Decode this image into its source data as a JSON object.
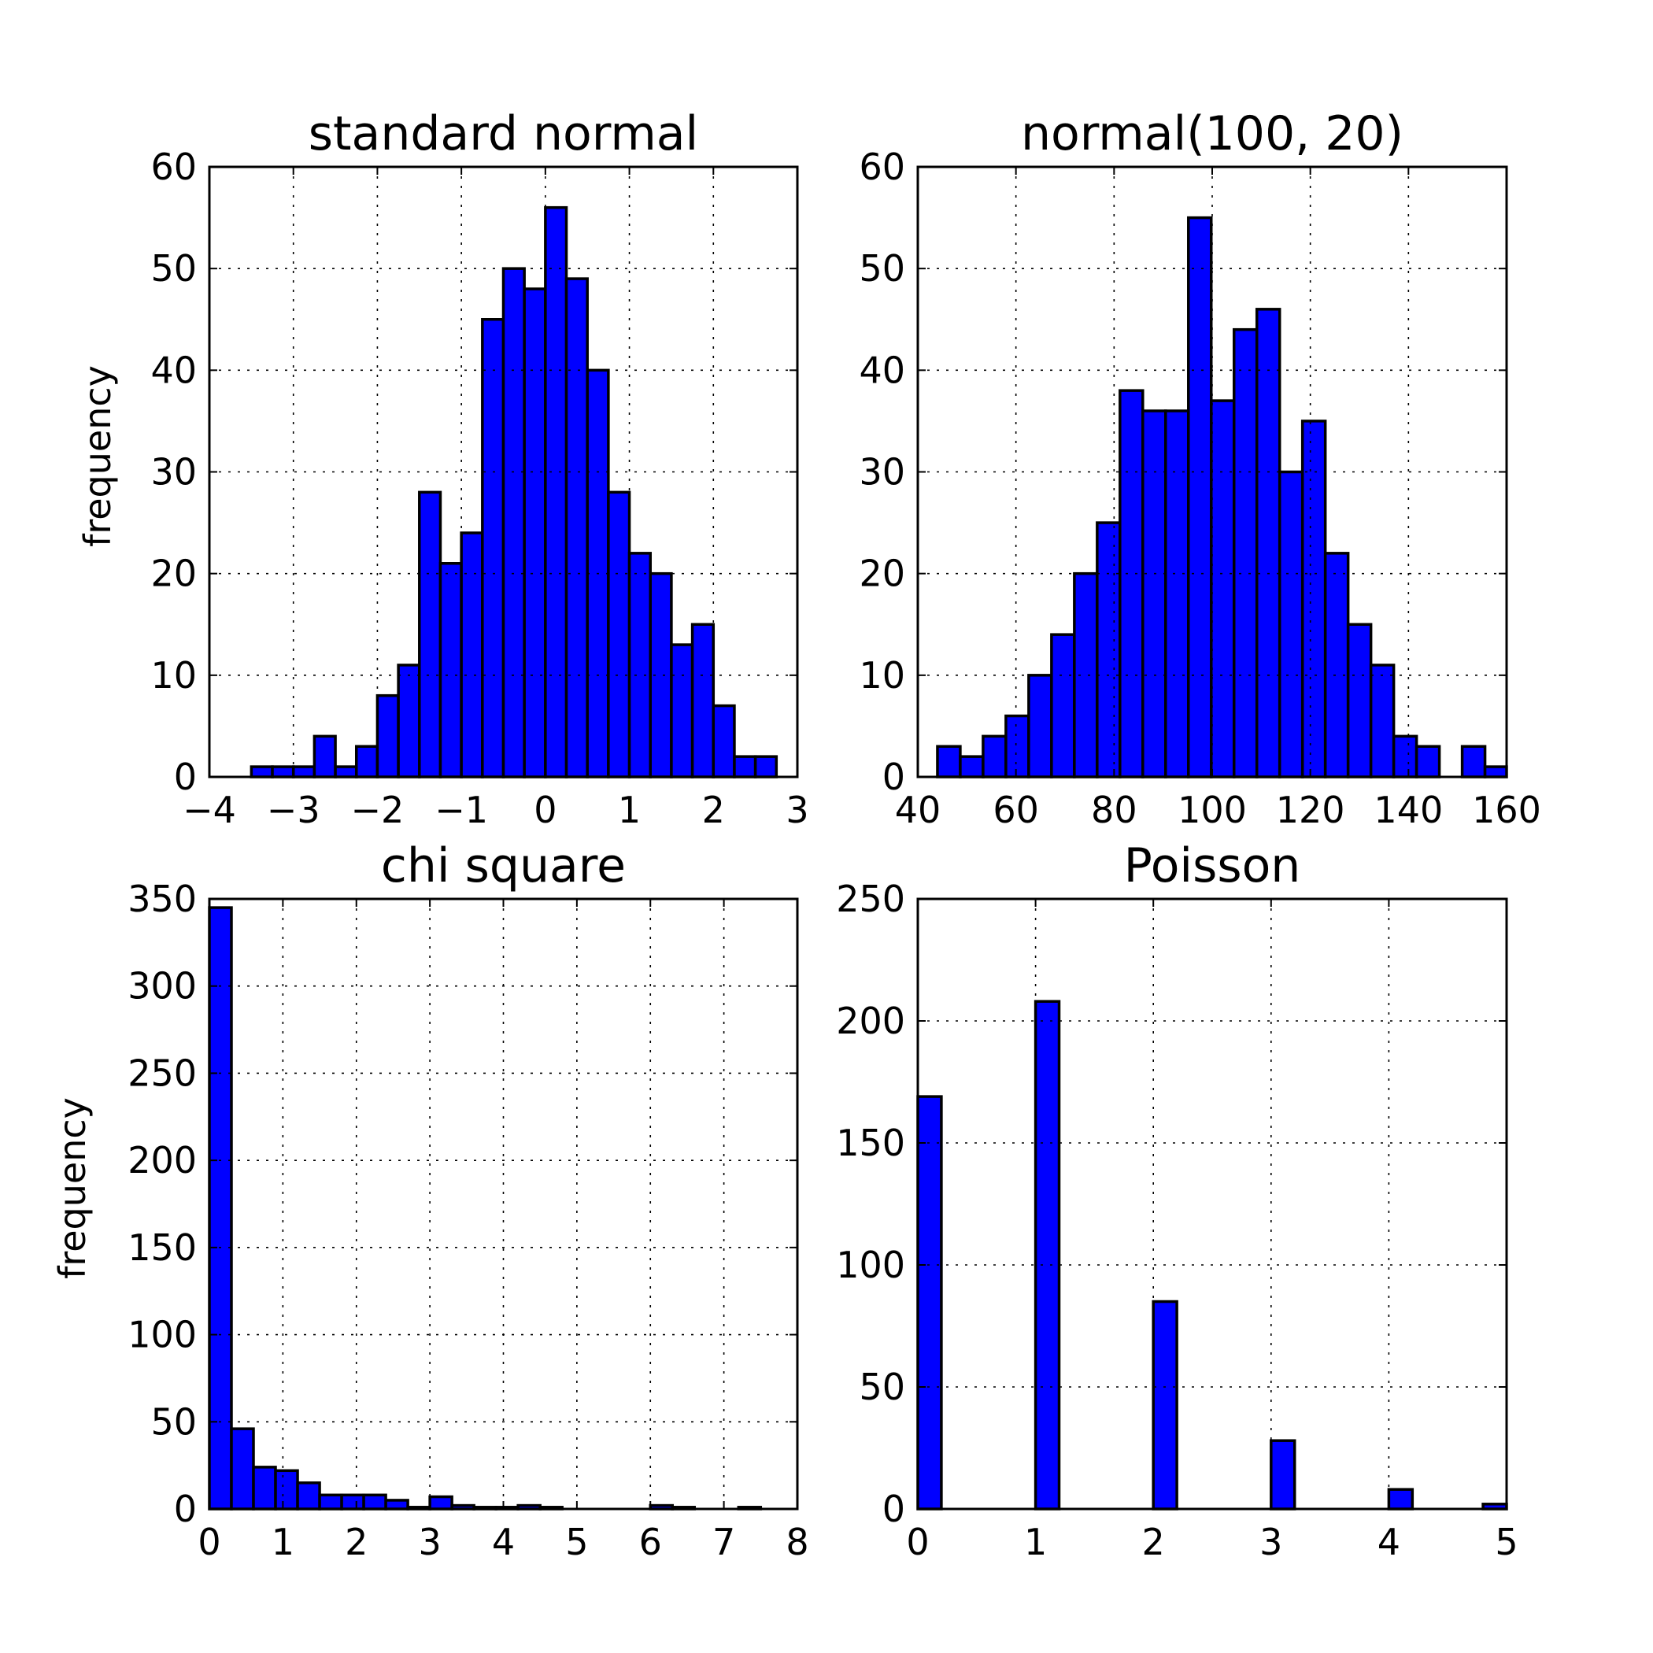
{
  "figure": {
    "bar_color": "#0000ff"
  },
  "chart_data": [
    {
      "type": "bar",
      "title": "standard normal",
      "xlabel": "",
      "ylabel": "frequency",
      "xlim": [
        -4,
        3
      ],
      "ylim": [
        0,
        60
      ],
      "xticks": [
        -4,
        -3,
        -2,
        -1,
        0,
        1,
        2,
        3
      ],
      "xtick_labels": [
        "−4",
        "−3",
        "−2",
        "−1",
        "0",
        "1",
        "2",
        "3"
      ],
      "yticks": [
        0,
        10,
        20,
        30,
        40,
        50,
        60
      ],
      "ytick_labels": [
        "0",
        "10",
        "20",
        "30",
        "40",
        "50",
        "60"
      ],
      "grid": true,
      "bin_start": -3.5,
      "bin_width": 0.25,
      "values": [
        1,
        1,
        1,
        4,
        1,
        3,
        8,
        11,
        28,
        21,
        24,
        45,
        50,
        48,
        56,
        49,
        40,
        28,
        22,
        20,
        13,
        15,
        7,
        2,
        2
      ]
    },
    {
      "type": "bar",
      "title": "normal(100, 20)",
      "xlabel": "",
      "ylabel": "",
      "xlim": [
        40,
        160
      ],
      "ylim": [
        0,
        60
      ],
      "xticks": [
        40,
        60,
        80,
        100,
        120,
        140,
        160
      ],
      "xtick_labels": [
        "40",
        "60",
        "80",
        "100",
        "120",
        "140",
        "160"
      ],
      "yticks": [
        0,
        10,
        20,
        30,
        40,
        50,
        60
      ],
      "ytick_labels": [
        "0",
        "10",
        "20",
        "30",
        "40",
        "50",
        "60"
      ],
      "grid": true,
      "bin_start": 44,
      "bin_width": 4.65,
      "values": [
        3,
        2,
        4,
        6,
        10,
        14,
        20,
        25,
        38,
        36,
        36,
        55,
        37,
        44,
        46,
        30,
        35,
        22,
        15,
        11,
        4,
        3,
        0,
        3,
        1
      ]
    },
    {
      "type": "bar",
      "title": "chi square",
      "xlabel": "",
      "ylabel": "frequency",
      "xlim": [
        0,
        8
      ],
      "ylim": [
        0,
        350
      ],
      "xticks": [
        0,
        1,
        2,
        3,
        4,
        5,
        6,
        7,
        8
      ],
      "xtick_labels": [
        "0",
        "1",
        "2",
        "3",
        "4",
        "5",
        "6",
        "7",
        "8"
      ],
      "yticks": [
        0,
        50,
        100,
        150,
        200,
        250,
        300,
        350
      ],
      "ytick_labels": [
        "0",
        "50",
        "100",
        "150",
        "200",
        "250",
        "300",
        "350"
      ],
      "grid": true,
      "bin_start": 0,
      "bin_width": 0.3,
      "values": [
        345,
        46,
        24,
        22,
        15,
        8,
        8,
        8,
        5,
        1,
        7,
        2,
        1,
        1,
        2,
        1,
        0,
        0,
        0,
        0,
        2,
        1,
        0,
        0,
        1
      ]
    },
    {
      "type": "bar",
      "title": "Poisson",
      "xlabel": "",
      "ylabel": "",
      "xlim": [
        0,
        5
      ],
      "ylim": [
        0,
        250
      ],
      "xticks": [
        0,
        1,
        2,
        3,
        4,
        5
      ],
      "xtick_labels": [
        "0",
        "1",
        "2",
        "3",
        "4",
        "5"
      ],
      "yticks": [
        0,
        50,
        100,
        150,
        200,
        250
      ],
      "ytick_labels": [
        "0",
        "50",
        "100",
        "150",
        "200",
        "250"
      ],
      "grid": true,
      "bin_start": 0,
      "bin_width": 0.2,
      "values": [
        169,
        0,
        0,
        0,
        0,
        208,
        0,
        0,
        0,
        0,
        85,
        0,
        0,
        0,
        0,
        28,
        0,
        0,
        0,
        0,
        8,
        0,
        0,
        0,
        2
      ]
    }
  ]
}
